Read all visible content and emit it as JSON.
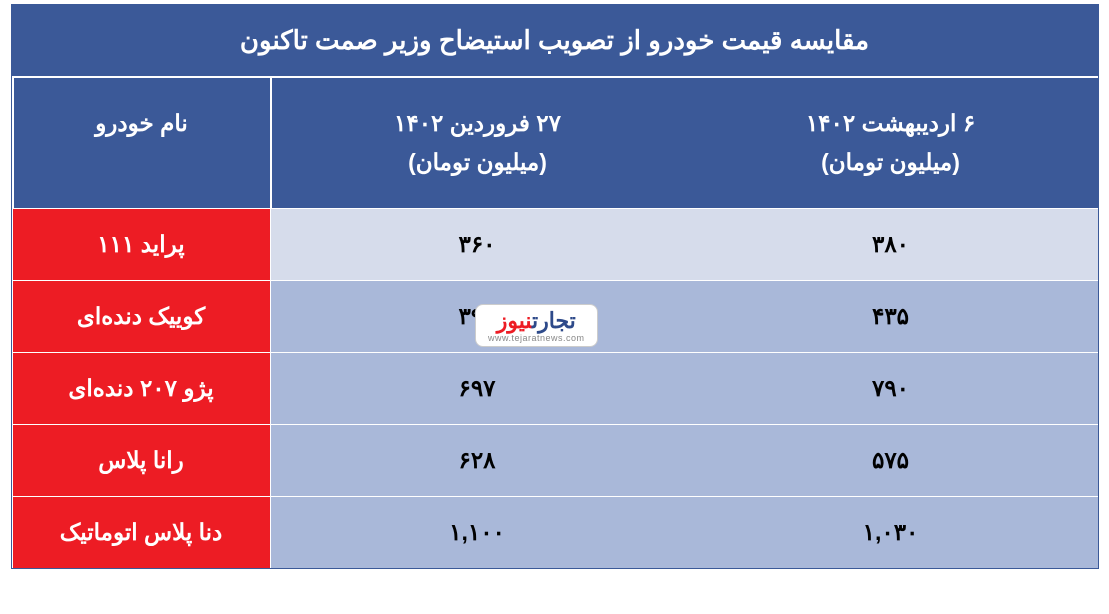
{
  "title": "مقایسه قیمت خودرو از تصویب استیضاح وزیر صمت تاکنون",
  "columns": {
    "name": "نام خودرو",
    "date1_line1": "۲۷ فروردین ۱۴۰۲",
    "date1_line2": "(میلیون تومان)",
    "date2_line1": "۶ اردیبهشت ۱۴۰۲",
    "date2_line2": "(میلیون تومان)"
  },
  "rows": [
    {
      "name": "پراید ۱۱۱",
      "v1": "۳۶۰",
      "v2": "۳۸۰",
      "shade": "light"
    },
    {
      "name": "کوییک دنده‌ای",
      "v1": "۳۹۸",
      "v2": "۴۳۵",
      "shade": "dark"
    },
    {
      "name": "پژو ۲۰۷ دنده‌ای",
      "v1": "۶۹۷",
      "v2": "۷۹۰",
      "shade": "dark"
    },
    {
      "name": "رانا پلاس",
      "v1": "۶۲۸",
      "v2": "۵۷۵",
      "shade": "dark"
    },
    {
      "name": "دنا پلاس اتوماتیک",
      "v1": "۱,۱۰۰",
      "v2": "۱,۰۳۰",
      "shade": "dark"
    }
  ],
  "watermark": {
    "word1": "تجارت",
    "word2": "نیوز",
    "sub": "www.tejaratnews.com"
  },
  "styling": {
    "header_bg": "#3b5998",
    "header_text": "#ffffff",
    "name_bg": "#ed1c24",
    "name_text": "#ffffff",
    "light_bg": "#d6dceb",
    "dark_bg": "#a9b8d9",
    "value_text": "#000000",
    "title_fontsize": 26,
    "header_fontsize": 23,
    "cell_fontsize": 23,
    "col_widths": {
      "name": 258,
      "date": 414
    }
  }
}
